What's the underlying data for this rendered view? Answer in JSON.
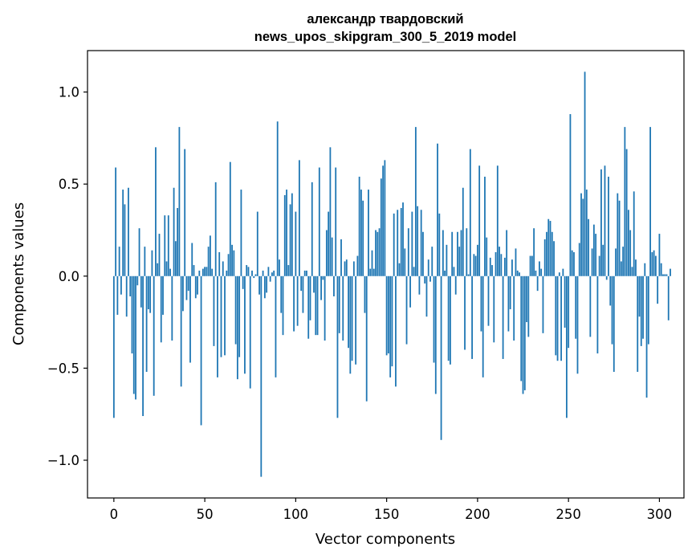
{
  "chart_data": {
    "type": "bar",
    "title": "александр твардовский",
    "subtitle": "news_upos_skipgram_300_5_2019 model",
    "xlabel": "Vector components",
    "ylabel": "Components values",
    "xlim": [
      -14.5,
      313.5
    ],
    "ylim": [
      -1.205,
      1.225
    ],
    "xticks": [
      0,
      50,
      100,
      150,
      200,
      250,
      300
    ],
    "yticks": [
      -1.0,
      -0.5,
      0.0,
      0.5,
      1.0
    ],
    "ytick_labels": [
      "−1.0",
      "−0.5",
      "0.0",
      "0.5",
      "1.0"
    ],
    "bar_color": "#1f77b4",
    "grid": false,
    "values": [
      -0.77,
      0.59,
      -0.21,
      0.16,
      -0.1,
      0.47,
      0.39,
      -0.22,
      0.48,
      -0.11,
      -0.42,
      -0.64,
      -0.67,
      -0.05,
      0.26,
      -0.17,
      -0.76,
      0.16,
      -0.52,
      -0.18,
      -0.2,
      0.14,
      -0.65,
      0.7,
      0.07,
      0.23,
      -0.36,
      -0.21,
      0.33,
      0.08,
      0.33,
      0.04,
      -0.35,
      0.48,
      0.19,
      0.37,
      0.81,
      -0.6,
      -0.19,
      0.69,
      -0.13,
      -0.08,
      -0.47,
      0.18,
      0.06,
      -0.12,
      -0.1,
      0.03,
      -0.81,
      0.04,
      0.05,
      0.05,
      0.16,
      0.22,
      0.04,
      -0.38,
      0.51,
      -0.55,
      0.13,
      -0.44,
      0.08,
      -0.43,
      0.03,
      0.12,
      0.62,
      0.17,
      0.14,
      -0.37,
      -0.56,
      -0.44,
      0.47,
      -0.07,
      -0.53,
      0.06,
      0.05,
      -0.61,
      0.03,
      -0.01,
      0.01,
      0.35,
      -0.1,
      -1.09,
      0.03,
      -0.12,
      -0.09,
      0.05,
      -0.03,
      0.02,
      0.03,
      -0.55,
      0.84,
      0.09,
      -0.2,
      -0.32,
      0.44,
      0.47,
      0.06,
      0.39,
      0.45,
      -0.3,
      0.35,
      -0.27,
      0.63,
      -0.08,
      -0.2,
      0.03,
      0.03,
      -0.34,
      -0.24,
      0.51,
      -0.09,
      -0.32,
      -0.32,
      0.59,
      -0.13,
      -0.02,
      -0.35,
      0.25,
      0.35,
      0.7,
      0.21,
      -0.11,
      0.59,
      -0.77,
      -0.31,
      0.2,
      -0.35,
      0.08,
      0.09,
      -0.39,
      -0.53,
      -0.46,
      0.08,
      -0.48,
      0.11,
      0.54,
      0.47,
      0.41,
      -0.2,
      -0.68,
      0.47,
      0.04,
      0.14,
      0.04,
      0.25,
      0.24,
      0.26,
      0.53,
      0.6,
      0.63,
      -0.43,
      -0.42,
      -0.55,
      -0.49,
      0.34,
      -0.6,
      0.36,
      0.07,
      0.37,
      0.4,
      0.15,
      -0.37,
      0.26,
      -0.17,
      0.35,
      0.05,
      0.81,
      0.38,
      -0.1,
      0.36,
      0.24,
      -0.04,
      -0.22,
      0.09,
      -0.03,
      0.16,
      -0.47,
      -0.64,
      0.72,
      0.34,
      -0.89,
      0.25,
      0.03,
      0.17,
      -0.46,
      -0.48,
      0.24,
      0.05,
      -0.1,
      0.24,
      0.16,
      0.25,
      0.48,
      -0.4,
      0.26,
      0.01,
      0.69,
      -0.45,
      0.12,
      0.11,
      0.17,
      0.6,
      -0.3,
      -0.55,
      0.54,
      0.21,
      -0.27,
      0.1,
      0.06,
      -0.36,
      0.13,
      0.6,
      0.16,
      0.12,
      -0.45,
      0.1,
      0.25,
      -0.3,
      -0.18,
      0.09,
      -0.35,
      0.15,
      0.03,
      0.02,
      -0.57,
      -0.64,
      -0.62,
      -0.25,
      -0.33,
      0.11,
      0.11,
      0.26,
      0.03,
      -0.08,
      0.08,
      0.04,
      -0.31,
      0.2,
      0.24,
      0.31,
      0.3,
      0.24,
      0.19,
      -0.43,
      -0.46,
      0.02,
      -0.46,
      0.04,
      -0.28,
      -0.77,
      -0.39,
      0.88,
      0.14,
      0.13,
      -0.34,
      -0.53,
      0.18,
      0.45,
      0.42,
      1.11,
      0.47,
      0.31,
      -0.33,
      0.15,
      0.28,
      0.23,
      -0.42,
      0.11,
      0.58,
      0.17,
      0.6,
      -0.02,
      0.54,
      -0.16,
      -0.37,
      -0.52,
      0.15,
      0.45,
      0.41,
      0.08,
      0.16,
      0.81,
      0.69,
      0.36,
      0.25,
      0.05,
      0.46,
      0.09,
      -0.52,
      -0.22,
      -0.38,
      -0.34,
      0.07,
      -0.66,
      -0.37,
      0.81,
      0.13,
      0.14,
      0.11,
      -0.15,
      0.23,
      0.07,
      0.01,
      0.01,
      0.01,
      -0.24,
      0.04
    ]
  }
}
